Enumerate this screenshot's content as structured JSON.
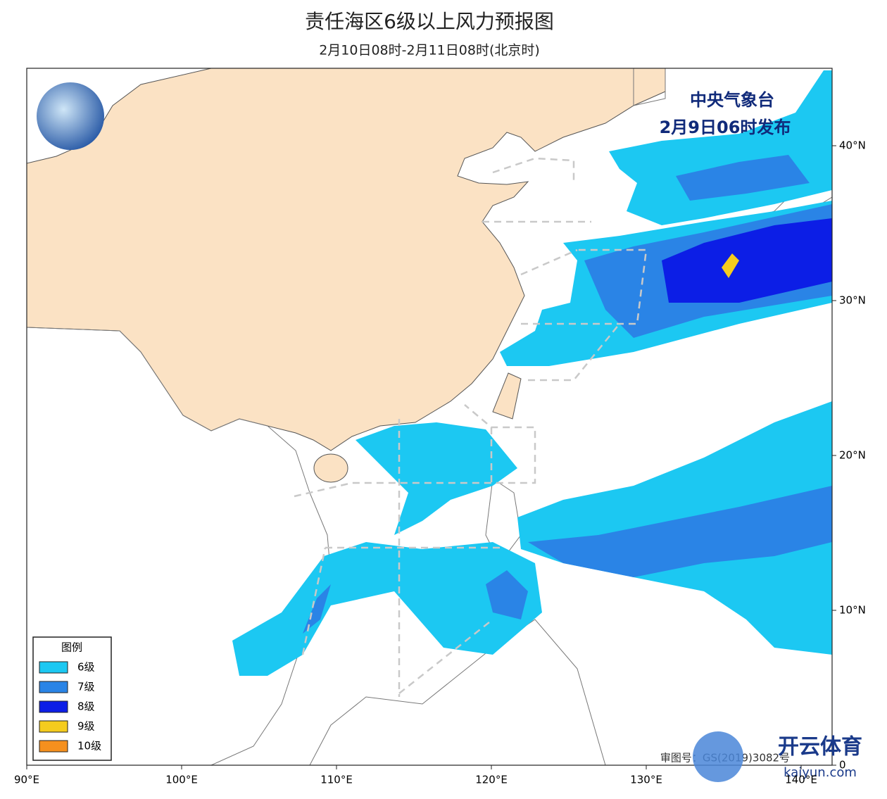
{
  "header": {
    "title": "责任海区6级以上风力预报图",
    "subtitle": "2月10日08时-2月11日08时(北京时)"
  },
  "issuer": {
    "agency": "中央气象台",
    "time": "2月9日06时发布"
  },
  "axes": {
    "lon_labels": [
      "90°E",
      "100°E",
      "110°E",
      "120°E",
      "130°E",
      "140°E"
    ],
    "lat_labels": [
      "40°N",
      "30°N",
      "20°N",
      "10°N",
      "0"
    ]
  },
  "legend": {
    "title": "图例",
    "items": [
      {
        "label": "6级",
        "color": "#1cc8f2"
      },
      {
        "label": "7级",
        "color": "#2a84e6"
      },
      {
        "label": "8级",
        "color": "#0c1ee6"
      },
      {
        "label": "9级",
        "color": "#f5cc1e"
      },
      {
        "label": "10级",
        "color": "#f5901e"
      }
    ]
  },
  "footer": {
    "approval": "审图号：GS(2019)3082号"
  },
  "watermark": {
    "brand": "开云体育",
    "url": "kaiyun.com"
  }
}
